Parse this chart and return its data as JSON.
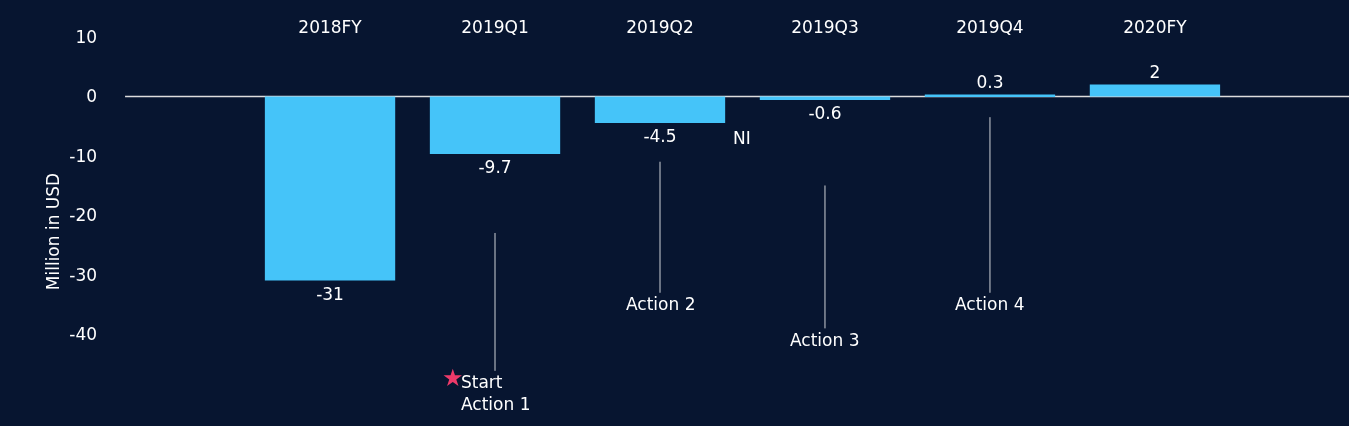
{
  "chart_data": {
    "type": "bar",
    "ylabel": "Million in USD",
    "categories": [
      "2018FY",
      "2019Q1",
      "2019Q2",
      "2019Q3",
      "2019Q4",
      "2020FY"
    ],
    "series": [
      {
        "color": "#45c4f9",
        "values": [
          -31,
          -9.7,
          -4.5,
          -0.6,
          0.3,
          2
        ]
      }
    ],
    "data_labels": true,
    "ylim": [
      -55.5,
      10
    ],
    "yticks": [
      10,
      0,
      -10,
      -20,
      -30,
      -40
    ],
    "ref_lines": [
      {
        "axis": "y",
        "value": 0,
        "color": "#dddddd"
      }
    ],
    "annotations": [
      "NI",
      "Start\nAction 1",
      "Action 2",
      "Action 3",
      "Action 4",
      "★"
    ],
    "grid": false
  }
}
